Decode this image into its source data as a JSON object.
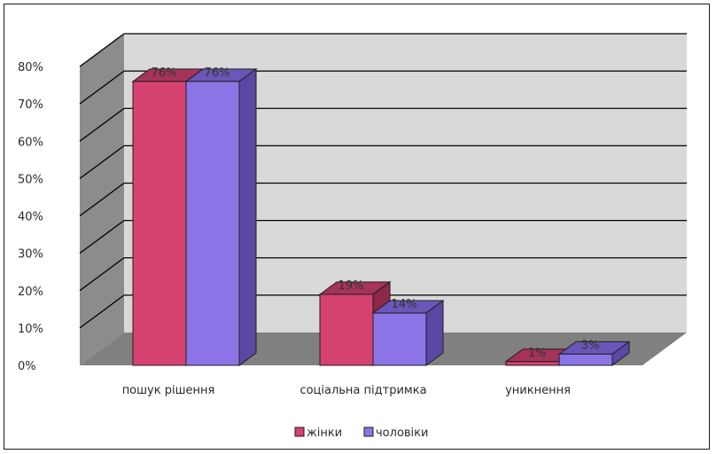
{
  "chart_data": {
    "type": "bar",
    "categories": [
      "пошук рішення",
      "соціальна підтримка",
      "уникнення"
    ],
    "series": [
      {
        "name": "жінки",
        "values": [
          76,
          19,
          1
        ],
        "labels": [
          "76%",
          "19%",
          "1%"
        ]
      },
      {
        "name": "чоловіки",
        "values": [
          76,
          14,
          3
        ],
        "labels": [
          "76%",
          "14%",
          "3%"
        ]
      }
    ],
    "ylim": [
      0,
      80
    ],
    "yticks": [
      "0%",
      "10%",
      "20%",
      "30%",
      "40%",
      "50%",
      "60%",
      "70%",
      "80%"
    ],
    "grid": true,
    "three_d": true,
    "legend_position": "bottom",
    "colors": {
      "zhinky_front": "#D64270",
      "zhinky_top": "#A5335A",
      "zhinky_side": "#8E2848",
      "cholovik_front": "#8C74E6",
      "cholovik_top": "#6A55B8",
      "cholovik_side": "#5B47A4",
      "wall": "#D9D9D9",
      "side_wall": "#8C8C8C",
      "floor": "#808080",
      "grid": "#000000"
    }
  }
}
